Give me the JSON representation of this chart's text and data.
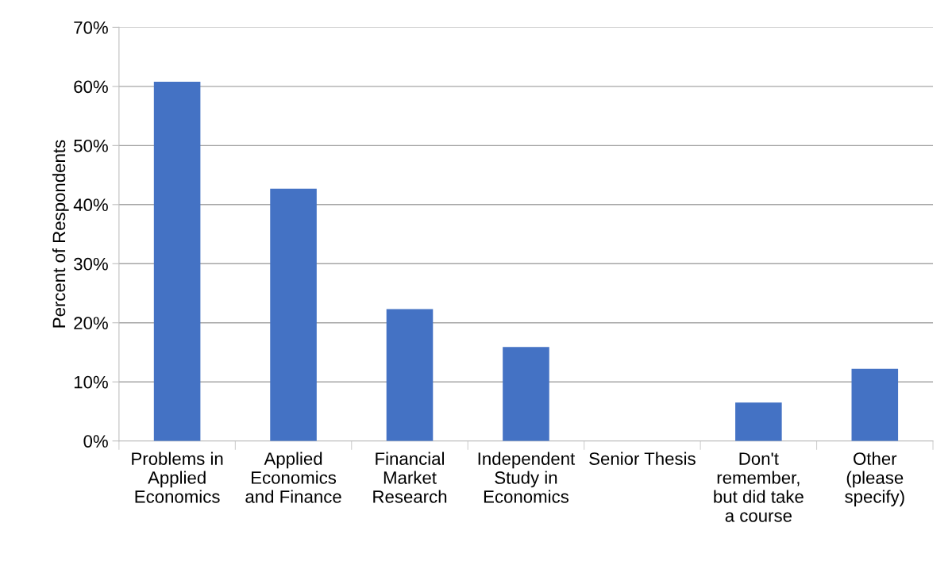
{
  "chart_data": {
    "type": "bar",
    "ylabel": "Percent of Respondents",
    "categories": [
      "Problems in\nApplied\nEconomics",
      "Applied\nEconomics\nand Finance",
      "Financial\nMarket\nResearch",
      "Independent\nStudy in\nEconomics",
      "Senior Thesis",
      "Don't\nremember,\nbut did take\na course",
      "Other\n(please\nspecify)"
    ],
    "values": [
      60.8,
      42.7,
      22.3,
      15.9,
      0,
      6.5,
      12.2
    ],
    "color": "#4472c4",
    "ylim": [
      0,
      70
    ],
    "yticks": [
      {
        "value": 0,
        "label": "0%"
      },
      {
        "value": 10,
        "label": "10%"
      },
      {
        "value": 20,
        "label": "20%"
      },
      {
        "value": 30,
        "label": "30%"
      },
      {
        "value": 40,
        "label": "40%"
      },
      {
        "value": 50,
        "label": "50%"
      },
      {
        "value": 60,
        "label": "60%"
      },
      {
        "value": 70,
        "label": "70%"
      }
    ],
    "grid": "y",
    "legend": false
  }
}
